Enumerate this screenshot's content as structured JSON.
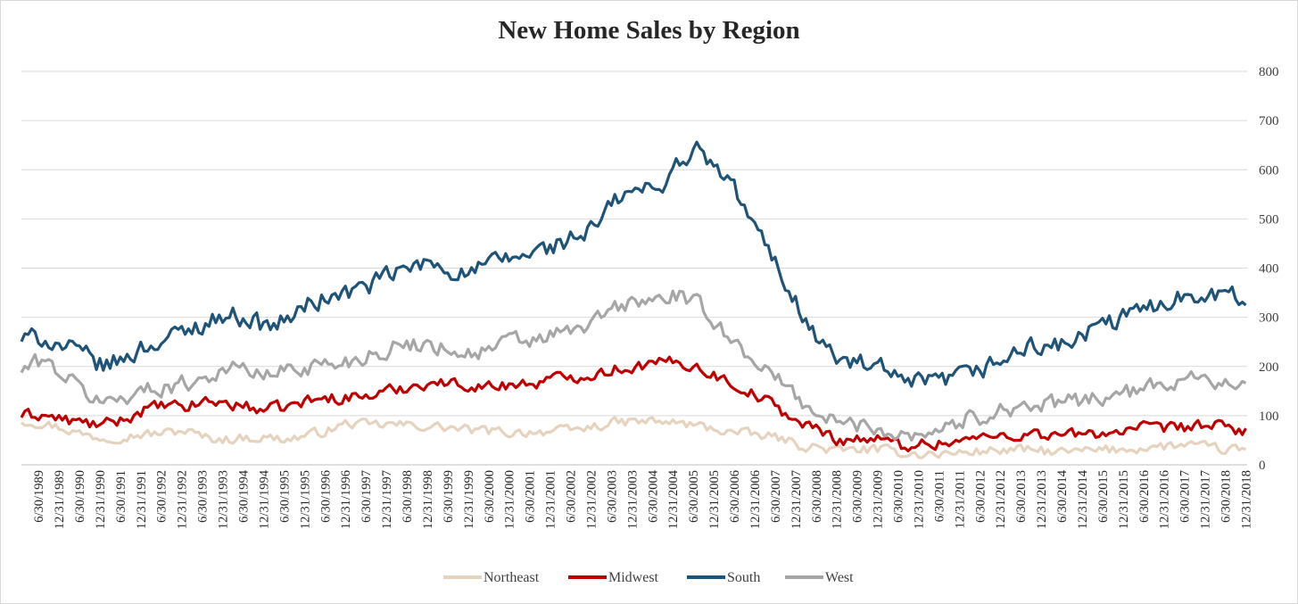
{
  "chart_data": {
    "type": "line",
    "title": "New Home Sales by Region",
    "xlabel": "",
    "ylabel": "",
    "ylim": [
      0,
      800
    ],
    "y_ticks": [
      0,
      100,
      200,
      300,
      400,
      500,
      600,
      700,
      800
    ],
    "y_axis_side": "right",
    "grid": true,
    "legend_position": "bottom",
    "x_tick_labels": [
      "6/30/1989",
      "12/31/1989",
      "6/30/1990",
      "12/31/1990",
      "6/30/1991",
      "12/31/1991",
      "6/30/1992",
      "12/31/1992",
      "6/30/1993",
      "12/31/1993",
      "6/30/1994",
      "12/31/1994",
      "6/30/1995",
      "12/31/1995",
      "6/30/1996",
      "12/31/1996",
      "6/30/1997",
      "12/31/1997",
      "6/30/1998",
      "12/31/1998",
      "6/30/1999",
      "12/31/1999",
      "6/30/2000",
      "12/31/2000",
      "6/30/2001",
      "12/31/2001",
      "6/30/2002",
      "12/31/2002",
      "6/30/2003",
      "12/31/2003",
      "6/30/2004",
      "12/31/2004",
      "6/30/2005",
      "12/31/2005",
      "6/30/2006",
      "12/31/2006",
      "6/30/2007",
      "12/31/2007",
      "6/30/2008",
      "12/31/2008",
      "6/30/2009",
      "12/31/2009",
      "6/30/2010",
      "12/31/2010",
      "6/30/2011",
      "12/31/2011",
      "6/30/2012",
      "12/31/2012",
      "6/30/2013",
      "12/31/2013",
      "6/30/2014",
      "12/31/2014",
      "6/30/2015",
      "12/31/2015",
      "6/30/2016",
      "12/31/2016",
      "6/30/2017",
      "12/31/2017",
      "6/30/2018",
      "12/31/2018"
    ],
    "x_start": "1989-01",
    "x_end": "2018-12",
    "series": [
      {
        "name": "Northeast",
        "color": "#e6d3bf",
        "anchors": [
          [
            1989.0,
            90
          ],
          [
            1989.5,
            85
          ],
          [
            1990.0,
            75
          ],
          [
            1990.5,
            62
          ],
          [
            1991.0,
            55
          ],
          [
            1991.5,
            58
          ],
          [
            1992.0,
            62
          ],
          [
            1992.5,
            65
          ],
          [
            1993.0,
            70
          ],
          [
            1993.5,
            55
          ],
          [
            1994.0,
            52
          ],
          [
            1994.5,
            55
          ],
          [
            1995.0,
            55
          ],
          [
            1995.5,
            52
          ],
          [
            1996.0,
            60
          ],
          [
            1996.5,
            70
          ],
          [
            1997.0,
            85
          ],
          [
            1997.5,
            80
          ],
          [
            1998.0,
            82
          ],
          [
            1998.5,
            80
          ],
          [
            1999.0,
            78
          ],
          [
            1999.5,
            75
          ],
          [
            2000.0,
            70
          ],
          [
            2000.5,
            68
          ],
          [
            2001.0,
            65
          ],
          [
            2001.5,
            68
          ],
          [
            2002.0,
            68
          ],
          [
            2002.5,
            70
          ],
          [
            2003.0,
            78
          ],
          [
            2003.5,
            85
          ],
          [
            2004.0,
            88
          ],
          [
            2004.5,
            88
          ],
          [
            2005.0,
            85
          ],
          [
            2005.5,
            80
          ],
          [
            2006.0,
            72
          ],
          [
            2006.5,
            65
          ],
          [
            2007.0,
            60
          ],
          [
            2007.5,
            55
          ],
          [
            2008.0,
            40
          ],
          [
            2008.5,
            35
          ],
          [
            2009.0,
            28
          ],
          [
            2009.5,
            32
          ],
          [
            2010.0,
            30
          ],
          [
            2010.5,
            25
          ],
          [
            2011.0,
            22
          ],
          [
            2011.5,
            22
          ],
          [
            2012.0,
            25
          ],
          [
            2012.5,
            28
          ],
          [
            2013.0,
            30
          ],
          [
            2013.5,
            30
          ],
          [
            2014.0,
            28
          ],
          [
            2014.5,
            25
          ],
          [
            2015.0,
            28
          ],
          [
            2015.5,
            30
          ],
          [
            2016.0,
            32
          ],
          [
            2016.5,
            35
          ],
          [
            2017.0,
            38
          ],
          [
            2017.5,
            40
          ],
          [
            2018.0,
            35
          ],
          [
            2018.5,
            30
          ],
          [
            2018.95,
            32
          ]
        ],
        "noise": 9
      },
      {
        "name": "Midwest",
        "color": "#c00000",
        "anchors": [
          [
            1989.0,
            100
          ],
          [
            1989.5,
            102
          ],
          [
            1990.0,
            92
          ],
          [
            1990.5,
            85
          ],
          [
            1991.0,
            80
          ],
          [
            1991.5,
            92
          ],
          [
            1992.0,
            112
          ],
          [
            1992.5,
            120
          ],
          [
            1993.0,
            115
          ],
          [
            1993.5,
            130
          ],
          [
            1994.0,
            125
          ],
          [
            1994.5,
            118
          ],
          [
            1995.0,
            112
          ],
          [
            1995.5,
            118
          ],
          [
            1996.0,
            130
          ],
          [
            1996.5,
            135
          ],
          [
            1997.0,
            138
          ],
          [
            1997.5,
            140
          ],
          [
            1998.0,
            150
          ],
          [
            1998.5,
            160
          ],
          [
            1999.0,
            168
          ],
          [
            1999.5,
            165
          ],
          [
            2000.0,
            162
          ],
          [
            2000.5,
            158
          ],
          [
            2001.0,
            165
          ],
          [
            2001.5,
            165
          ],
          [
            2002.0,
            175
          ],
          [
            2002.5,
            180
          ],
          [
            2003.0,
            185
          ],
          [
            2003.5,
            195
          ],
          [
            2004.0,
            200
          ],
          [
            2004.5,
            205
          ],
          [
            2005.0,
            210
          ],
          [
            2005.5,
            200
          ],
          [
            2006.0,
            180
          ],
          [
            2006.5,
            160
          ],
          [
            2007.0,
            140
          ],
          [
            2007.5,
            115
          ],
          [
            2008.0,
            85
          ],
          [
            2008.5,
            70
          ],
          [
            2009.0,
            50
          ],
          [
            2009.5,
            55
          ],
          [
            2010.0,
            50
          ],
          [
            2010.5,
            40
          ],
          [
            2011.0,
            42
          ],
          [
            2011.5,
            45
          ],
          [
            2012.0,
            50
          ],
          [
            2012.5,
            55
          ],
          [
            2013.0,
            60
          ],
          [
            2013.5,
            62
          ],
          [
            2014.0,
            62
          ],
          [
            2014.5,
            60
          ],
          [
            2015.0,
            62
          ],
          [
            2015.5,
            66
          ],
          [
            2016.0,
            70
          ],
          [
            2016.5,
            75
          ],
          [
            2017.0,
            72
          ],
          [
            2017.5,
            78
          ],
          [
            2018.0,
            80
          ],
          [
            2018.5,
            75
          ],
          [
            2018.95,
            68
          ]
        ],
        "noise": 11
      },
      {
        "name": "South",
        "color": "#1f5478",
        "anchors": [
          [
            1989.0,
            255
          ],
          [
            1989.5,
            260
          ],
          [
            1990.0,
            240
          ],
          [
            1990.5,
            225
          ],
          [
            1991.0,
            200
          ],
          [
            1991.5,
            215
          ],
          [
            1992.0,
            240
          ],
          [
            1992.5,
            255
          ],
          [
            1993.0,
            270
          ],
          [
            1993.5,
            290
          ],
          [
            1994.0,
            305
          ],
          [
            1994.5,
            300
          ],
          [
            1995.0,
            280
          ],
          [
            1995.5,
            295
          ],
          [
            1996.0,
            325
          ],
          [
            1996.5,
            340
          ],
          [
            1997.0,
            350
          ],
          [
            1997.5,
            365
          ],
          [
            1998.0,
            385
          ],
          [
            1998.5,
            400
          ],
          [
            1999.0,
            410
          ],
          [
            1999.5,
            395
          ],
          [
            2000.0,
            390
          ],
          [
            2000.5,
            410
          ],
          [
            2001.0,
            420
          ],
          [
            2001.5,
            430
          ],
          [
            2002.0,
            445
          ],
          [
            2002.5,
            460
          ],
          [
            2003.0,
            480
          ],
          [
            2003.5,
            535
          ],
          [
            2004.0,
            560
          ],
          [
            2004.5,
            555
          ],
          [
            2005.0,
            610
          ],
          [
            2005.5,
            640
          ],
          [
            2006.0,
            600
          ],
          [
            2006.5,
            550
          ],
          [
            2007.0,
            470
          ],
          [
            2007.5,
            400
          ],
          [
            2008.0,
            320
          ],
          [
            2008.5,
            250
          ],
          [
            2009.0,
            210
          ],
          [
            2009.5,
            205
          ],
          [
            2010.0,
            195
          ],
          [
            2010.5,
            165
          ],
          [
            2011.0,
            165
          ],
          [
            2011.5,
            170
          ],
          [
            2012.0,
            180
          ],
          [
            2012.5,
            195
          ],
          [
            2013.0,
            215
          ],
          [
            2013.5,
            235
          ],
          [
            2014.0,
            245
          ],
          [
            2014.5,
            240
          ],
          [
            2015.0,
            265
          ],
          [
            2015.5,
            285
          ],
          [
            2016.0,
            300
          ],
          [
            2016.5,
            320
          ],
          [
            2017.0,
            335
          ],
          [
            2017.5,
            345
          ],
          [
            2018.0,
            355
          ],
          [
            2018.5,
            345
          ],
          [
            2018.95,
            330
          ]
        ],
        "noise": 18
      },
      {
        "name": "West",
        "color": "#a6a6a6",
        "anchors": [
          [
            1989.0,
            190
          ],
          [
            1989.5,
            215
          ],
          [
            1990.0,
            185
          ],
          [
            1990.5,
            150
          ],
          [
            1991.0,
            125
          ],
          [
            1991.5,
            140
          ],
          [
            1992.0,
            150
          ],
          [
            1992.5,
            160
          ],
          [
            1993.0,
            165
          ],
          [
            1993.5,
            180
          ],
          [
            1994.0,
            195
          ],
          [
            1994.5,
            195
          ],
          [
            1995.0,
            180
          ],
          [
            1995.5,
            195
          ],
          [
            1996.0,
            200
          ],
          [
            1996.5,
            205
          ],
          [
            1997.0,
            210
          ],
          [
            1997.5,
            225
          ],
          [
            1998.0,
            235
          ],
          [
            1998.5,
            245
          ],
          [
            1999.0,
            245
          ],
          [
            1999.5,
            235
          ],
          [
            2000.0,
            225
          ],
          [
            2000.5,
            235
          ],
          [
            2001.0,
            255
          ],
          [
            2001.5,
            250
          ],
          [
            2002.0,
            265
          ],
          [
            2002.5,
            270
          ],
          [
            2003.0,
            290
          ],
          [
            2003.5,
            320
          ],
          [
            2004.0,
            330
          ],
          [
            2004.5,
            335
          ],
          [
            2005.0,
            345
          ],
          [
            2005.5,
            325
          ],
          [
            2006.0,
            290
          ],
          [
            2006.5,
            240
          ],
          [
            2007.0,
            210
          ],
          [
            2007.5,
            170
          ],
          [
            2008.0,
            135
          ],
          [
            2008.5,
            100
          ],
          [
            2009.0,
            85
          ],
          [
            2009.5,
            80
          ],
          [
            2010.0,
            75
          ],
          [
            2010.5,
            62
          ],
          [
            2011.0,
            65
          ],
          [
            2011.5,
            75
          ],
          [
            2012.0,
            90
          ],
          [
            2012.5,
            100
          ],
          [
            2013.0,
            115
          ],
          [
            2013.5,
            120
          ],
          [
            2014.0,
            120
          ],
          [
            2014.5,
            125
          ],
          [
            2015.0,
            135
          ],
          [
            2015.5,
            140
          ],
          [
            2016.0,
            145
          ],
          [
            2016.5,
            155
          ],
          [
            2017.0,
            165
          ],
          [
            2017.5,
            185
          ],
          [
            2018.0,
            180
          ],
          [
            2018.5,
            160
          ],
          [
            2018.95,
            150
          ]
        ],
        "noise": 16
      }
    ]
  }
}
